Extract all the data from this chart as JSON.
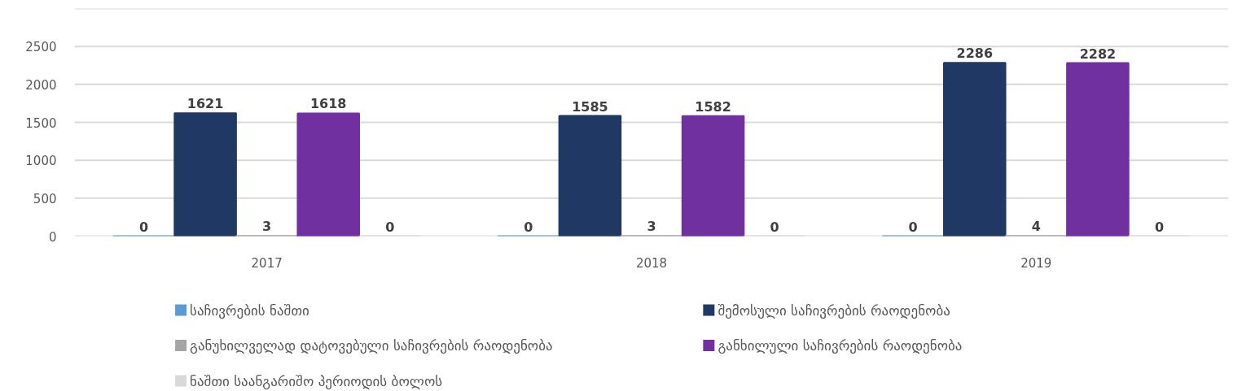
{
  "chart_data": {
    "type": "bar",
    "categories": [
      "2017",
      "2018",
      "2019"
    ],
    "series": [
      {
        "name": "საჩივრების ნაშთი",
        "color": "#5b9bd5",
        "values": [
          0,
          0,
          0
        ]
      },
      {
        "name": "შემოსული საჩივრების რაოდენობა",
        "color": "#203864",
        "values": [
          1621,
          1585,
          2286
        ]
      },
      {
        "name": "განუხილველად დატოვებული საჩივრების რაოდენობა",
        "color": "#a5a5a5",
        "values": [
          3,
          3,
          4
        ]
      },
      {
        "name": "განხილული საჩივრების რაოდენობა",
        "color": "#7030a0",
        "values": [
          1618,
          1582,
          2282
        ]
      },
      {
        "name": "ნაშთი საანგარიშო პერიოდის ბოლოს",
        "color": "#d9d9d9",
        "values": [
          0,
          0,
          0
        ]
      }
    ],
    "ylim": [
      0,
      3000
    ],
    "yticks": [
      0,
      500,
      1000,
      1500,
      2000,
      2500,
      {
        "value": 3000,
        "label": null
      }
    ],
    "grid": "y",
    "legend": "bottom",
    "data_labels": true
  }
}
